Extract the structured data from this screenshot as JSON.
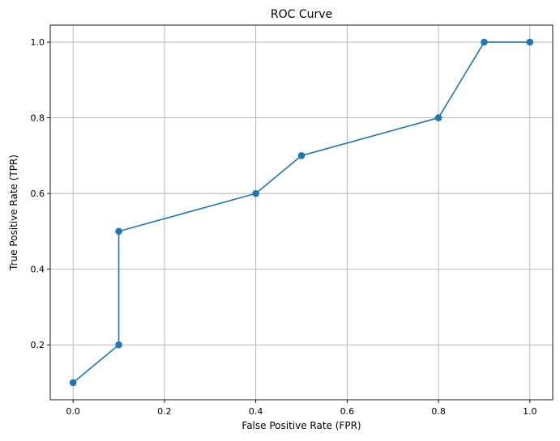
{
  "chart_data": {
    "type": "line",
    "title": "ROC Curve",
    "xlabel": "False Positive Rate (FPR)",
    "ylabel": "True Positive Rate (TPR)",
    "xlim": [
      -0.05,
      1.05
    ],
    "ylim": [
      0.055,
      1.045
    ],
    "xticks": [
      0.0,
      0.2,
      0.4,
      0.6,
      0.8,
      1.0
    ],
    "xtick_labels": [
      "0.0",
      "0.2",
      "0.4",
      "0.6",
      "0.8",
      "1.0"
    ],
    "yticks": [
      0.2,
      0.4,
      0.6,
      0.8,
      1.0
    ],
    "ytick_labels": [
      "0.2",
      "0.4",
      "0.6",
      "0.8",
      "1.0"
    ],
    "grid": true,
    "legend": "none",
    "series": [
      {
        "x": [
          0.0,
          0.1,
          0.1,
          0.4,
          0.5,
          0.8,
          0.9,
          1.0
        ],
        "y": [
          0.1,
          0.2,
          0.5,
          0.6,
          0.7,
          0.8,
          1.0,
          1.0
        ],
        "color": "#1f77b4",
        "marker": "circle"
      }
    ]
  }
}
